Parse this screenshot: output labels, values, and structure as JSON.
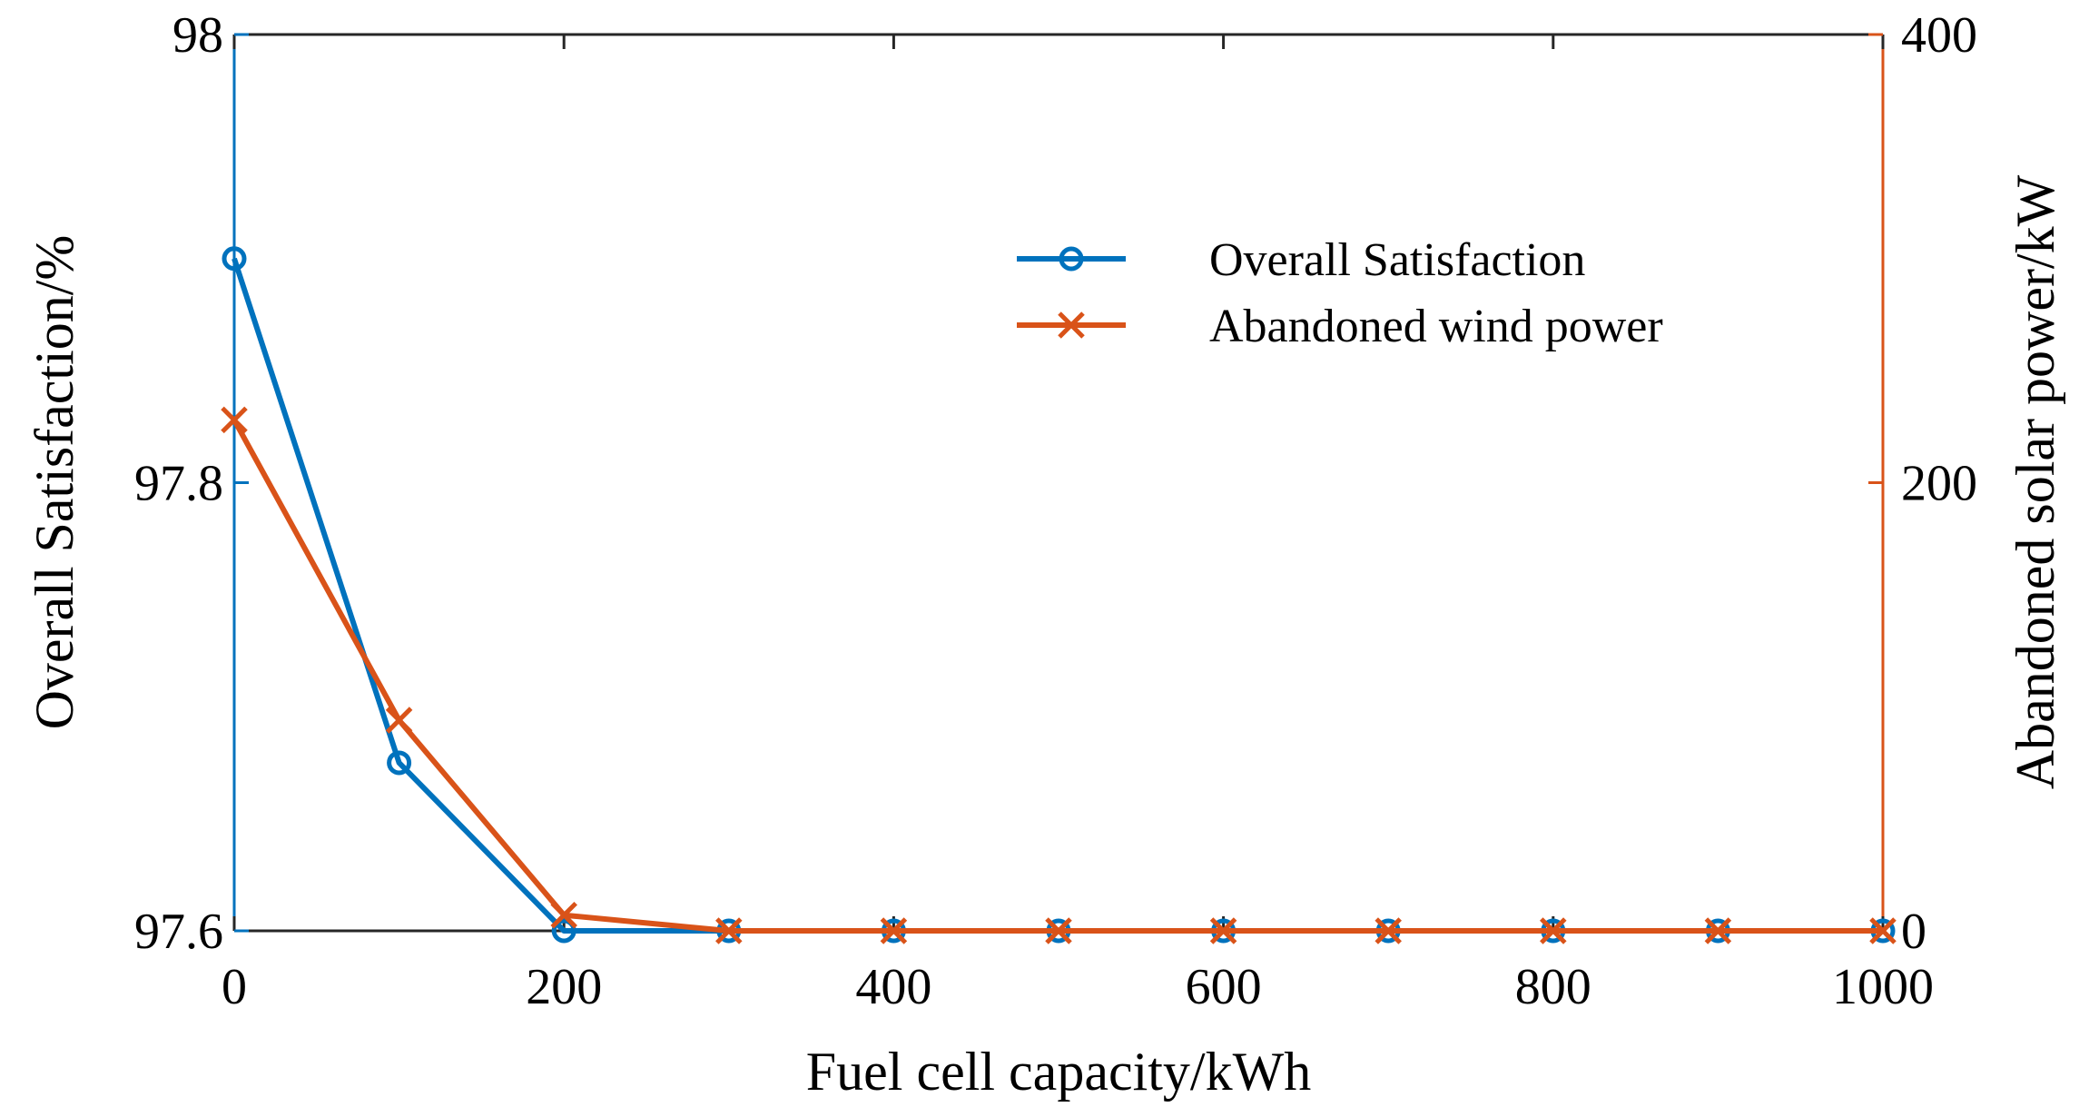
{
  "chart_data": {
    "type": "line",
    "title": "",
    "xlabel": "Fuel cell capacity/kWh",
    "ylabel": "Overall Satisfaction/%",
    "y2label": "Abandoned solar power/kW",
    "xlim": [
      0,
      1000
    ],
    "ylim": [
      97.6,
      98
    ],
    "y2lim": [
      0,
      400
    ],
    "x": [
      0,
      100,
      200,
      300,
      400,
      500,
      600,
      700,
      800,
      900,
      1000
    ],
    "xticks": [
      "0",
      "200",
      "400",
      "600",
      "800",
      "1000"
    ],
    "yticks": [
      "97.6",
      "97.8",
      "98"
    ],
    "y2ticks": [
      "0",
      "200",
      "400"
    ],
    "grid": false,
    "legend_position": "top-right",
    "series": [
      {
        "name": "Overall Satisfaction",
        "axis": "left",
        "marker": "circle",
        "color": "#0072BD",
        "values": [
          97.9,
          97.675,
          97.6,
          97.6,
          97.6,
          97.6,
          97.6,
          97.6,
          97.6,
          97.6,
          97.6
        ]
      },
      {
        "name": "Abandoned wind power",
        "axis": "right",
        "marker": "x",
        "color": "#D95319",
        "values": [
          228,
          94,
          7,
          0,
          0,
          0,
          0,
          0,
          0,
          0,
          0
        ]
      }
    ]
  }
}
